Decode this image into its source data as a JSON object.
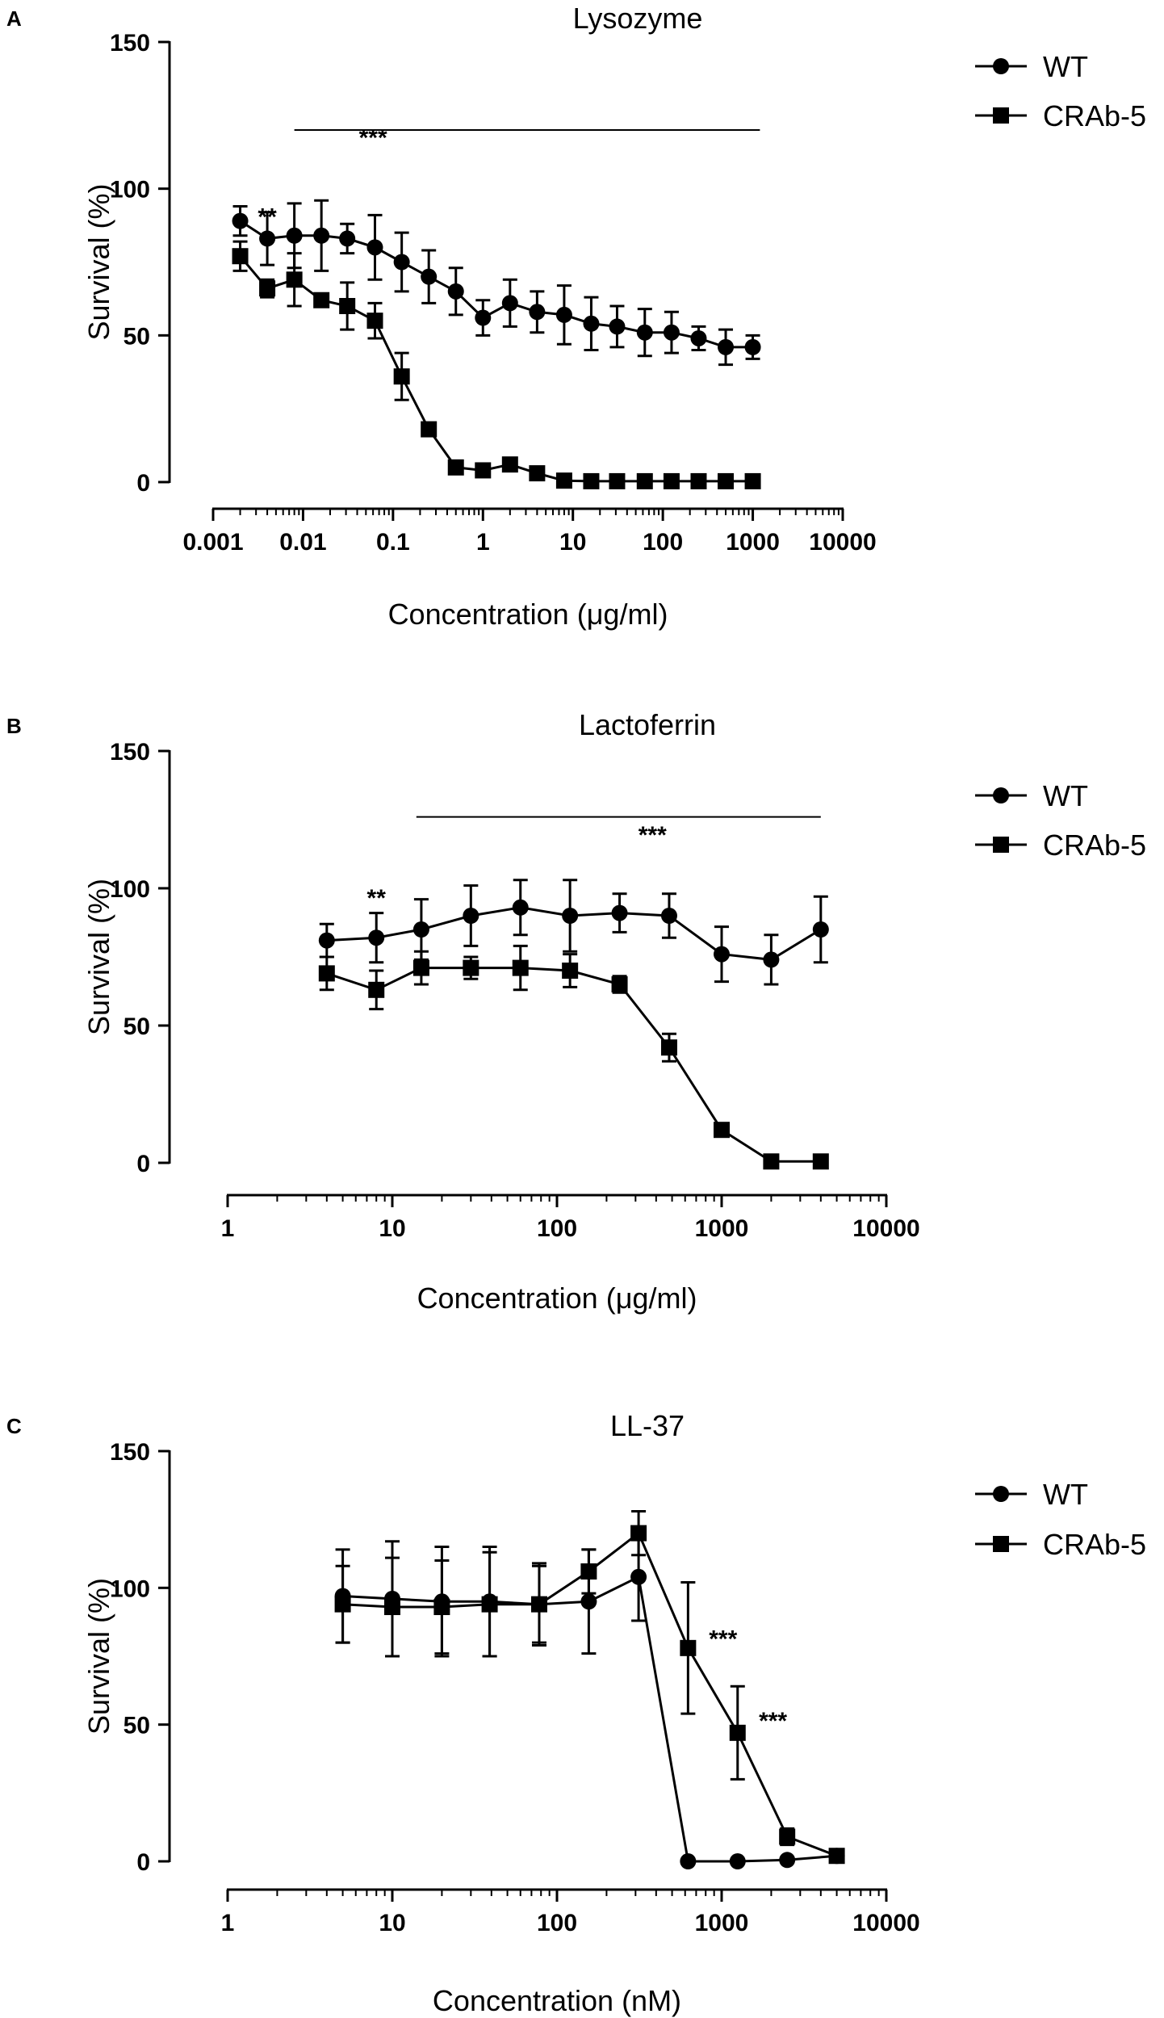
{
  "chart_data": [
    {
      "type": "line",
      "panel_label": "A",
      "title": "Lysozyme",
      "xlabel": "Concentration (μg/ml)",
      "ylabel": "Survival (%)",
      "xscale": "log",
      "xlim": [
        0.001,
        10000
      ],
      "ylim": [
        0,
        150
      ],
      "xticks": [
        0.001,
        0.01,
        0.1,
        1,
        10,
        100,
        1000,
        10000
      ],
      "xtick_labels": [
        "0.001",
        "0.01",
        "0.1",
        "1",
        "10",
        "100",
        "1000",
        "10000"
      ],
      "yticks": [
        0,
        50,
        100,
        150
      ],
      "ytick_labels": [
        "0",
        "50",
        "100",
        "150"
      ],
      "legend": "top-right",
      "series": [
        {
          "name": "WT",
          "marker": "circle",
          "x": [
            0.002,
            0.004,
            0.008,
            0.016,
            0.031,
            0.063,
            0.125,
            0.25,
            0.5,
            1,
            2,
            4,
            8,
            16,
            31,
            63,
            125,
            250,
            500,
            1000
          ],
          "values": [
            89,
            83,
            84,
            84,
            83,
            80,
            75,
            70,
            65,
            56,
            61,
            58,
            57,
            54,
            53,
            51,
            51,
            49,
            46,
            46
          ],
          "errors": [
            5,
            9,
            11,
            12,
            5,
            11,
            10,
            9,
            8,
            6,
            8,
            7,
            10,
            9,
            7,
            8,
            7,
            4,
            6,
            4
          ]
        },
        {
          "name": "CRAb-5",
          "marker": "square",
          "x": [
            0.002,
            0.004,
            0.008,
            0.016,
            0.031,
            0.063,
            0.125,
            0.25,
            0.5,
            1,
            2,
            4,
            8,
            16,
            31,
            63,
            125,
            250,
            500,
            1000
          ],
          "values": [
            77,
            66,
            69,
            62,
            60,
            55,
            36,
            18,
            5,
            4,
            6,
            3,
            0.5,
            0.3,
            0.3,
            0.3,
            0.3,
            0.3,
            0.3,
            0.3
          ],
          "errors": [
            5,
            3,
            9,
            2,
            8,
            6,
            8,
            2,
            1,
            1,
            1,
            1,
            0.5,
            0.3,
            0.3,
            0.3,
            0.3,
            0.3,
            0.3,
            0.3
          ]
        }
      ],
      "annotations": [
        {
          "text": "**",
          "x": 0.004,
          "y": 91
        },
        {
          "text": "***",
          "x": 0.06,
          "y": 118,
          "bar_from": 0.008,
          "bar_to": 1200,
          "bar_y": 120
        }
      ]
    },
    {
      "type": "line",
      "panel_label": "B",
      "title": "Lactoferrin",
      "xlabel": "Concentration (μg/ml)",
      "ylabel": "Survival (%)",
      "xscale": "log",
      "xlim": [
        1,
        10000
      ],
      "ylim": [
        0,
        150
      ],
      "xticks": [
        1,
        10,
        100,
        1000,
        10000
      ],
      "xtick_labels": [
        "1",
        "10",
        "100",
        "1000",
        "10000"
      ],
      "yticks": [
        0,
        50,
        100,
        150
      ],
      "ytick_labels": [
        "0",
        "50",
        "100",
        "150"
      ],
      "legend": "top-right",
      "series": [
        {
          "name": "WT",
          "marker": "circle",
          "x": [
            4,
            8,
            15,
            30,
            60,
            120,
            240,
            480,
            1000,
            2000,
            4000
          ],
          "values": [
            81,
            82,
            85,
            90,
            93,
            90,
            91,
            90,
            76,
            74,
            85
          ],
          "errors": [
            6,
            9,
            11,
            11,
            10,
            13,
            7,
            8,
            10,
            9,
            12
          ]
        },
        {
          "name": "CRAb-5",
          "marker": "square",
          "x": [
            4,
            8,
            15,
            30,
            60,
            120,
            240,
            480,
            1000,
            2000,
            4000
          ],
          "values": [
            69,
            63,
            71,
            71,
            71,
            70,
            65,
            42,
            12,
            0.5,
            0.5
          ],
          "errors": [
            6,
            7,
            6,
            4,
            8,
            6,
            3,
            5,
            1,
            0.5,
            0.5
          ]
        }
      ],
      "annotations": [
        {
          "text": "**",
          "x": 8,
          "y": 97
        },
        {
          "text": "***",
          "x": 380,
          "y": 120,
          "bar_from": 14,
          "bar_to": 4000,
          "bar_y": 126
        }
      ]
    },
    {
      "type": "line",
      "panel_label": "C",
      "title": "LL-37",
      "xlabel": "Concentration (nM)",
      "ylabel": "Survival (%)",
      "xscale": "log",
      "xlim": [
        1,
        10000
      ],
      "ylim": [
        0,
        150
      ],
      "xticks": [
        1,
        10,
        100,
        1000,
        10000
      ],
      "xtick_labels": [
        "1",
        "10",
        "100",
        "1000",
        "10000"
      ],
      "yticks": [
        0,
        50,
        100,
        150
      ],
      "ytick_labels": [
        "0",
        "50",
        "100",
        "150"
      ],
      "legend": "top-right",
      "series": [
        {
          "name": "WT",
          "marker": "circle",
          "x": [
            5,
            10,
            20,
            39,
            78,
            156,
            313,
            625,
            1250,
            2500,
            5000
          ],
          "values": [
            97,
            96,
            95,
            95,
            94,
            95,
            104,
            0,
            0,
            0.5,
            2
          ],
          "errors": [
            17,
            21,
            20,
            20,
            15,
            19,
            16,
            0.5,
            0.5,
            0.5,
            1
          ]
        },
        {
          "name": "CRAb-5",
          "marker": "square",
          "x": [
            5,
            10,
            20,
            39,
            78,
            156,
            313,
            625,
            1250,
            2500,
            5000
          ],
          "values": [
            94,
            93,
            93,
            94,
            94,
            106,
            120,
            78,
            47,
            9,
            2
          ],
          "errors": [
            14,
            18,
            17,
            19,
            14,
            8,
            8,
            24,
            17,
            3,
            1
          ]
        }
      ],
      "annotations": [
        {
          "text": "***",
          "x": 1020,
          "y": 82
        },
        {
          "text": "***",
          "x": 2050,
          "y": 52
        }
      ]
    }
  ]
}
